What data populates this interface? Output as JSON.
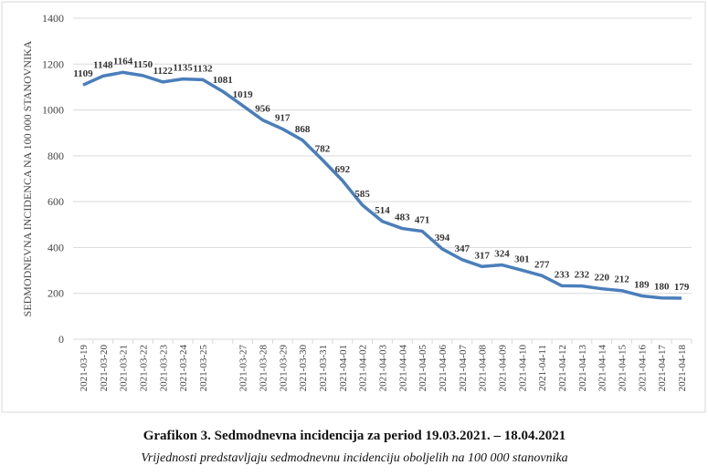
{
  "chart_data": {
    "type": "line",
    "caption": "Grafikon 3. Sedmodnevna incidencija za period 19.03.2021. – 18.04.2021",
    "subcaption": "Vrijednosti predstavljaju sedmodnevnu incidenciju oboljelih na 100 000 stanovnika",
    "y_label": "SEDMODNEVNA INCIDENCA NA 100 000 STANOVNIKA",
    "categories": [
      "2021-03-19",
      "2021-03-20",
      "2021-03-21",
      "2021-03-22",
      "2021-03-23",
      "2021-03-24",
      "2021-03-25",
      null,
      "2021-03-27",
      "2021-03-28",
      "2021-03-29",
      "2021-03-30",
      "2021-03-31",
      "2021-04-01",
      "2021-04-02",
      "2021-04-03",
      "2021-04-04",
      "2021-04-05",
      "2021-04-06",
      "2021-04-07",
      "2021-04-08",
      "2021-04-09",
      "2021-04-10",
      "2021-04-11",
      "2021-04-12",
      "2021-04-13",
      "2021-04-14",
      "2021-04-15",
      "2021-04-16",
      "2021-04-17",
      "2021-04-18"
    ],
    "values": [
      1109,
      1148,
      1164,
      1150,
      1122,
      1135,
      1132,
      1081,
      1019,
      956,
      917,
      868,
      782,
      692,
      585,
      514,
      483,
      471,
      394,
      347,
      317,
      324,
      301,
      277,
      233,
      232,
      220,
      212,
      189,
      180,
      179
    ],
    "color": "#4a7ebb",
    "ylim": [
      0,
      1400
    ],
    "yticks": [
      0,
      200,
      400,
      600,
      800,
      1000,
      1200,
      1400
    ],
    "grid": true
  }
}
